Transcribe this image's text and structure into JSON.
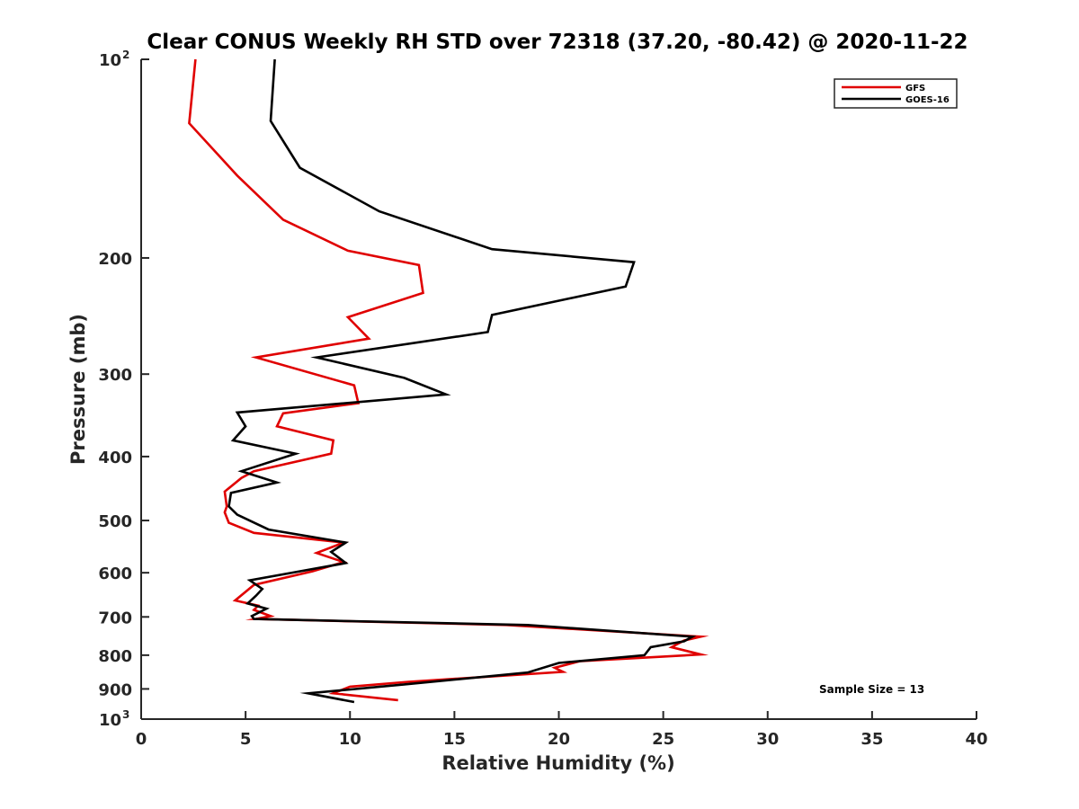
{
  "chart_data": {
    "type": "line",
    "title": "Clear CONUS Weekly RH STD over 72318 (37.20, -80.42) @ 2020-11-22",
    "xlabel": "Relative Humidity (%)",
    "ylabel": "Pressure (mb)",
    "xlim": [
      0,
      40
    ],
    "ylim": [
      100,
      1000
    ],
    "y_scale": "log",
    "y_reversed": true,
    "x_ticks": [
      0,
      5,
      10,
      15,
      20,
      25,
      30,
      35,
      40
    ],
    "y_ticks": [
      {
        "value": 100,
        "label": "10",
        "sup": "2"
      },
      {
        "value": 200,
        "label": "200"
      },
      {
        "value": 300,
        "label": "300"
      },
      {
        "value": 400,
        "label": "400"
      },
      {
        "value": 500,
        "label": "500"
      },
      {
        "value": 600,
        "label": "600"
      },
      {
        "value": 700,
        "label": "700"
      },
      {
        "value": 800,
        "label": "800"
      },
      {
        "value": 900,
        "label": "900"
      },
      {
        "value": 1000,
        "label": "10",
        "sup": "3"
      }
    ],
    "legend_position": "top-right",
    "grid": false,
    "annotation": "Sample Size = 13",
    "series": [
      {
        "name": "GFS",
        "color": "#e00000",
        "points": [
          [
            2.6,
            100
          ],
          [
            2.3,
            125
          ],
          [
            4.6,
            150
          ],
          [
            6.8,
            175
          ],
          [
            9.9,
            195
          ],
          [
            13.3,
            205
          ],
          [
            13.5,
            226
          ],
          [
            9.9,
            246
          ],
          [
            10.9,
            265
          ],
          [
            5.5,
            283
          ],
          [
            10.2,
            312
          ],
          [
            10.4,
            332
          ],
          [
            6.8,
            344
          ],
          [
            6.5,
            360
          ],
          [
            9.2,
            378
          ],
          [
            9.1,
            396
          ],
          [
            5.4,
            421
          ],
          [
            4.8,
            431
          ],
          [
            4.0,
            452
          ],
          [
            4.1,
            476
          ],
          [
            4.0,
            486
          ],
          [
            4.2,
            504
          ],
          [
            5.4,
            522
          ],
          [
            9.7,
            540
          ],
          [
            8.4,
            560
          ],
          [
            9.7,
            578
          ],
          [
            8.2,
            597
          ],
          [
            5.4,
            626
          ],
          [
            4.5,
            661
          ],
          [
            5.6,
            673
          ],
          [
            5.4,
            683
          ],
          [
            6.2,
            698
          ],
          [
            5.5,
            705
          ],
          [
            17.5,
            720
          ],
          [
            26.8,
            750
          ],
          [
            26.0,
            760
          ],
          [
            25.4,
            778
          ],
          [
            26.8,
            798
          ],
          [
            21.0,
            817
          ],
          [
            19.8,
            836
          ],
          [
            20.2,
            848
          ],
          [
            12.8,
            878
          ],
          [
            10.0,
            893
          ],
          [
            9.2,
            914
          ],
          [
            12.3,
            936
          ]
        ]
      },
      {
        "name": "GOES-16",
        "color": "#000000",
        "points": [
          [
            6.4,
            100
          ],
          [
            6.2,
            124
          ],
          [
            7.6,
            146
          ],
          [
            11.4,
            170
          ],
          [
            16.8,
            194
          ],
          [
            23.6,
            203
          ],
          [
            23.2,
            221
          ],
          [
            16.8,
            244
          ],
          [
            16.6,
            259
          ],
          [
            8.4,
            283
          ],
          [
            12.6,
            304
          ],
          [
            14.6,
            322
          ],
          [
            4.6,
            343
          ],
          [
            5.0,
            360
          ],
          [
            4.4,
            378
          ],
          [
            7.4,
            396
          ],
          [
            4.8,
            421
          ],
          [
            6.5,
            438
          ],
          [
            4.3,
            454
          ],
          [
            4.2,
            476
          ],
          [
            4.6,
            490
          ],
          [
            6.1,
            516
          ],
          [
            9.8,
            540
          ],
          [
            9.1,
            558
          ],
          [
            9.8,
            580
          ],
          [
            5.2,
            616
          ],
          [
            5.8,
            635
          ],
          [
            5.5,
            650
          ],
          [
            5.1,
            668
          ],
          [
            6.0,
            680
          ],
          [
            5.3,
            698
          ],
          [
            5.4,
            705
          ],
          [
            18.5,
            720
          ],
          [
            26.4,
            750
          ],
          [
            26.0,
            762
          ],
          [
            24.4,
            778
          ],
          [
            24.1,
            800
          ],
          [
            20.0,
            822
          ],
          [
            18.5,
            850
          ],
          [
            12.6,
            886
          ],
          [
            9.8,
            903
          ],
          [
            8.0,
            914
          ],
          [
            10.2,
            942
          ]
        ]
      }
    ]
  }
}
